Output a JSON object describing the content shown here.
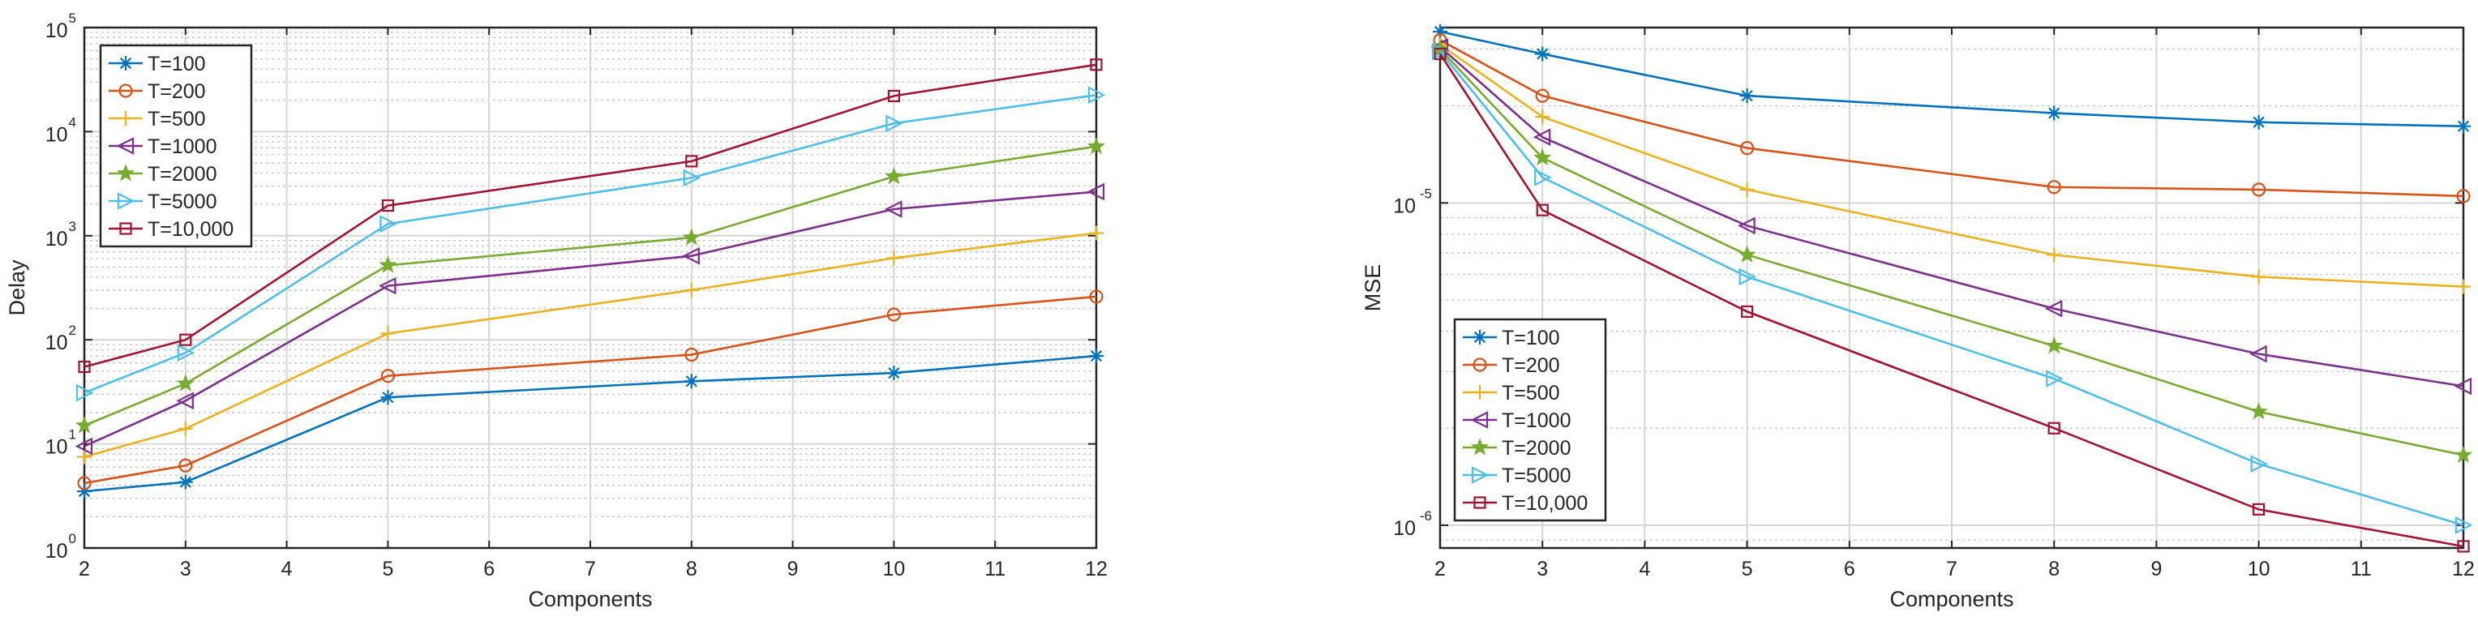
{
  "chart_data": [
    {
      "type": "line",
      "xlabel": "Components",
      "ylabel": "Delay",
      "yscale": "log",
      "xlim": [
        2,
        12
      ],
      "ylim": [
        1,
        100000
      ],
      "xticks": [
        "2",
        "3",
        "4",
        "5",
        "6",
        "7",
        "8",
        "9",
        "10",
        "11",
        "12"
      ],
      "yticks": [
        {
          "base": "10",
          "exp": "0"
        },
        {
          "base": "10",
          "exp": "1"
        },
        {
          "base": "10",
          "exp": "2"
        },
        {
          "base": "10",
          "exp": "3"
        },
        {
          "base": "10",
          "exp": "4"
        },
        {
          "base": "10",
          "exp": "5"
        }
      ],
      "grid": true,
      "legend_position": "top-left",
      "x": [
        2,
        3,
        5,
        8,
        10,
        12
      ],
      "series": [
        {
          "name": "T=100",
          "color": "#0072BD",
          "marker": "asterisk",
          "values": [
            3.5,
            4.3,
            28,
            40,
            48,
            70
          ]
        },
        {
          "name": "T=200",
          "color": "#D95319",
          "marker": "circle",
          "values": [
            4.2,
            6.2,
            45,
            72,
            175,
            260
          ]
        },
        {
          "name": "T=500",
          "color": "#EDB120",
          "marker": "plus",
          "values": [
            7.5,
            14,
            115,
            300,
            610,
            1060
          ]
        },
        {
          "name": "T=1000",
          "color": "#7E2F8E",
          "marker": "triangle-left",
          "values": [
            9.5,
            26,
            330,
            640,
            1800,
            2650
          ]
        },
        {
          "name": "T=2000",
          "color": "#77AC30",
          "marker": "pentagram",
          "values": [
            15,
            38,
            520,
            960,
            3700,
            7200
          ]
        },
        {
          "name": "T=5000",
          "color": "#4DBEEE",
          "marker": "triangle-right",
          "values": [
            31,
            75,
            1300,
            3600,
            12000,
            22500
          ]
        },
        {
          "name": "T=10,000",
          "color": "#A2142F",
          "marker": "square",
          "values": [
            55,
            100,
            1950,
            5200,
            22000,
            44000
          ]
        }
      ]
    },
    {
      "type": "line",
      "xlabel": "Components",
      "ylabel": "MSE",
      "yscale": "log",
      "xlim": [
        2,
        12
      ],
      "ylim": [
        8.5e-07,
        3.5e-05
      ],
      "xticks": [
        "2",
        "3",
        "4",
        "5",
        "6",
        "7",
        "8",
        "9",
        "10",
        "11",
        "12"
      ],
      "yticks": [
        {
          "base": "10",
          "exp": "-6"
        },
        {
          "base": "10",
          "exp": "-5"
        }
      ],
      "grid": true,
      "legend_position": "bottom-left",
      "x": [
        2,
        3,
        5,
        8,
        10,
        12
      ],
      "series": [
        {
          "name": "T=100",
          "color": "#0072BD",
          "marker": "asterisk",
          "values": [
            3.4e-05,
            2.9e-05,
            2.15e-05,
            1.9e-05,
            1.78e-05,
            1.73e-05
          ]
        },
        {
          "name": "T=200",
          "color": "#D95319",
          "marker": "circle",
          "values": [
            3.2e-05,
            2.15e-05,
            1.48e-05,
            1.12e-05,
            1.1e-05,
            1.05e-05
          ]
        },
        {
          "name": "T=500",
          "color": "#EDB120",
          "marker": "plus",
          "values": [
            3.1e-05,
            1.85e-05,
            1.1e-05,
            6.9e-06,
            5.9e-06,
            5.5e-06
          ]
        },
        {
          "name": "T=1000",
          "color": "#7E2F8E",
          "marker": "triangle-left",
          "values": [
            3.05e-05,
            1.6e-05,
            8.5e-06,
            4.7e-06,
            3.4e-06,
            2.7e-06
          ]
        },
        {
          "name": "T=2000",
          "color": "#77AC30",
          "marker": "pentagram",
          "values": [
            3e-05,
            1.38e-05,
            6.9e-06,
            3.6e-06,
            2.25e-06,
            1.65e-06
          ]
        },
        {
          "name": "T=5000",
          "color": "#4DBEEE",
          "marker": "triangle-right",
          "values": [
            2.95e-05,
            1.2e-05,
            5.9e-06,
            2.85e-06,
            1.55e-06,
            1e-06
          ]
        },
        {
          "name": "T=10,000",
          "color": "#A2142F",
          "marker": "square",
          "values": [
            2.9e-05,
            9.5e-06,
            4.6e-06,
            2e-06,
            1.12e-06,
            8.6e-07
          ]
        }
      ]
    }
  ]
}
